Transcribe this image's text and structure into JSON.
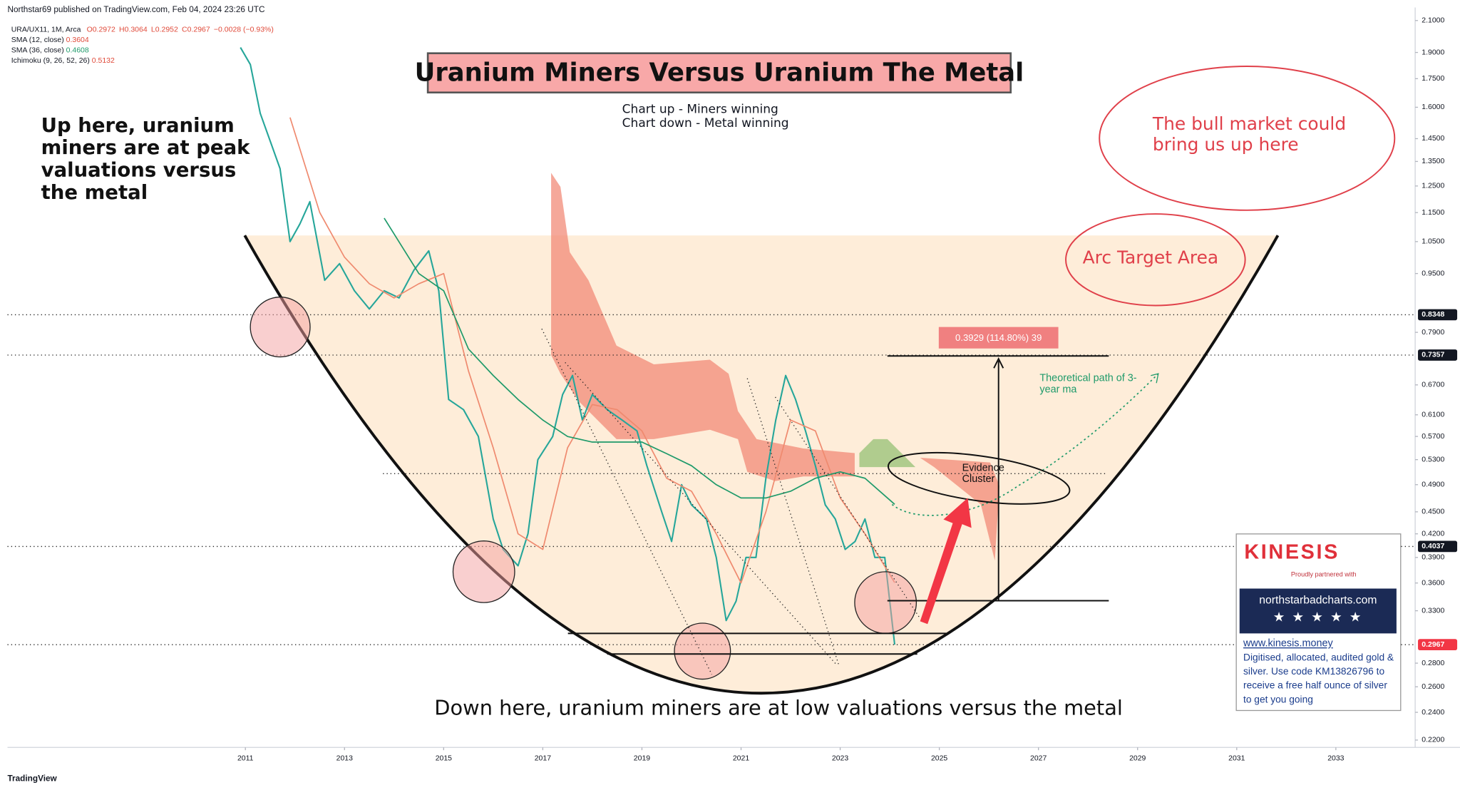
{
  "header": "Northstar69 published on TradingView.com, Feb 04, 2024 23:26 UTC",
  "footer": "TradingView",
  "chart_data": {
    "type": "line",
    "title": "Uranium Miners Versus Uranium The Metal",
    "subtitle": [
      "Chart up - Miners winning",
      "Chart down - Metal winning"
    ],
    "quote": [
      "O0.2972",
      "H0.3064",
      "L0.2952",
      "C0.2967",
      "−0.0028 (−0.93%)"
    ],
    "series": [
      {
        "name": "URA/UX11, 1M, Arca",
        "color": "#26a69a",
        "x": [
          2010.9,
          2011.1,
          2011.3,
          2011.5,
          2011.7,
          2011.9,
          2012.1,
          2012.3,
          2012.6,
          2012.9,
          2013.2,
          2013.5,
          2013.8,
          2014.1,
          2014.4,
          2014.7,
          2014.9,
          2015.1,
          2015.4,
          2015.7,
          2016.0,
          2016.2,
          2016.5,
          2016.7,
          2016.9,
          2017.2,
          2017.4,
          2017.6,
          2017.8,
          2018.0,
          2018.3,
          2018.6,
          2018.9,
          2019.1,
          2019.4,
          2019.6,
          2019.8,
          2020.0,
          2020.3,
          2020.5,
          2020.7,
          2020.9,
          2021.1,
          2021.3,
          2021.5,
          2021.7,
          2021.9,
          2022.1,
          2022.3,
          2022.5,
          2022.7,
          2022.9,
          2023.1,
          2023.3,
          2023.5,
          2023.7,
          2023.9,
          2024.0,
          2024.1
        ],
        "values": [
          1.93,
          1.83,
          1.57,
          1.44,
          1.32,
          1.05,
          1.11,
          1.19,
          0.93,
          0.98,
          0.9,
          0.85,
          0.9,
          0.88,
          0.96,
          1.02,
          0.9,
          0.64,
          0.62,
          0.57,
          0.44,
          0.4,
          0.38,
          0.42,
          0.53,
          0.57,
          0.65,
          0.69,
          0.6,
          0.65,
          0.62,
          0.6,
          0.58,
          0.52,
          0.45,
          0.41,
          0.49,
          0.46,
          0.44,
          0.39,
          0.32,
          0.34,
          0.39,
          0.39,
          0.5,
          0.6,
          0.69,
          0.64,
          0.58,
          0.52,
          0.46,
          0.44,
          0.4,
          0.41,
          0.44,
          0.39,
          0.39,
          0.34,
          0.2967
        ]
      },
      {
        "name": "SMA (12, close)",
        "color": "#ef8a6f",
        "x": [
          2011.9,
          2012.5,
          2013,
          2013.5,
          2014,
          2014.5,
          2015,
          2015.5,
          2016,
          2016.5,
          2017,
          2017.5,
          2018,
          2018.5,
          2019,
          2019.5,
          2020,
          2020.5,
          2021,
          2021.5,
          2022,
          2022.5,
          2023,
          2023.5,
          2024.1
        ],
        "values": [
          1.55,
          1.15,
          1.0,
          0.92,
          0.88,
          0.92,
          0.95,
          0.7,
          0.55,
          0.42,
          0.4,
          0.55,
          0.63,
          0.62,
          0.58,
          0.5,
          0.48,
          0.42,
          0.36,
          0.45,
          0.6,
          0.58,
          0.47,
          0.42,
          0.3604
        ]
      },
      {
        "name": "SMA (36, close)",
        "color": "#1e9a6a",
        "x": [
          2013.8,
          2014.5,
          2015,
          2015.5,
          2016,
          2016.5,
          2017,
          2017.5,
          2018,
          2019,
          2019.5,
          2020,
          2020.5,
          2021,
          2021.5,
          2022,
          2022.5,
          2023,
          2023.5,
          2024.1
        ],
        "values": [
          1.13,
          0.95,
          0.9,
          0.75,
          0.69,
          0.64,
          0.6,
          0.57,
          0.56,
          0.56,
          0.54,
          0.52,
          0.49,
          0.47,
          0.47,
          0.48,
          0.5,
          0.51,
          0.5,
          0.4608
        ]
      }
    ],
    "ichimoku": {
      "name": "Ichimoku (9, 26, 52, 26)",
      "value": 0.5132
    },
    "log_scale": true,
    "xlim": [
      2006.2,
      2034.6
    ],
    "xticks": [
      2011,
      2013,
      2015,
      2017,
      2019,
      2021,
      2023,
      2025,
      2027,
      2029,
      2031,
      2033
    ],
    "ylim": [
      0.215,
      2.175
    ],
    "yticks": [
      {
        "value": 2.1,
        "label": "2.1000"
      },
      {
        "value": 1.9,
        "label": "1.9000"
      },
      {
        "value": 1.75,
        "label": "1.7500"
      },
      {
        "value": 1.6,
        "label": "1.6000"
      },
      {
        "value": 1.45,
        "label": "1.4500"
      },
      {
        "value": 1.35,
        "label": "1.3500"
      },
      {
        "value": 1.25,
        "label": "1.2500"
      },
      {
        "value": 1.15,
        "label": "1.1500"
      },
      {
        "value": 1.05,
        "label": "1.0500"
      },
      {
        "value": 0.95,
        "label": "0.9500"
      },
      {
        "value": 0.79,
        "label": "0.7900"
      },
      {
        "value": 0.67,
        "label": "0.6700"
      },
      {
        "value": 0.61,
        "label": "0.6100"
      },
      {
        "value": 0.57,
        "label": "0.5700"
      },
      {
        "value": 0.53,
        "label": "0.5300"
      },
      {
        "value": 0.49,
        "label": "0.4900"
      },
      {
        "value": 0.45,
        "label": "0.4500"
      },
      {
        "value": 0.42,
        "label": "0.4200"
      },
      {
        "value": 0.39,
        "label": "0.3900"
      },
      {
        "value": 0.36,
        "label": "0.3600"
      },
      {
        "value": 0.33,
        "label": "0.3300"
      },
      {
        "value": 0.28,
        "label": "0.2800"
      },
      {
        "value": 0.26,
        "label": "0.2600"
      },
      {
        "value": 0.24,
        "label": "0.2400"
      },
      {
        "value": 0.22,
        "label": "0.2200"
      }
    ],
    "levels": [
      {
        "value": 0.8348,
        "color": "#131722"
      },
      {
        "value": 0.7357,
        "color": "#131722"
      },
      {
        "value": 0.4037,
        "color": "#131722"
      },
      {
        "value": 0.2967,
        "color": "#f23645"
      }
    ],
    "annotations": {
      "peak": "Up here, uranium miners are at peak valuations versus the metal",
      "low": "Down here, uranium miners are at low valuations versus the metal",
      "bull": "The bull market could bring us up here",
      "arc": "Arc Target Area",
      "measure": "0.3929 (114.80%) 39",
      "path": "Theoretical path of 3-year ma",
      "cluster": "Evidence Cluster"
    }
  },
  "ad": {
    "brand": "KINESIS",
    "tagline": "Proudly partnered with",
    "site": "northstarbadcharts.com",
    "stars": "★ ★ ★ ★ ★",
    "url": "www.kinesis.money",
    "text": "Digitised, allocated, audited gold & silver. Use code KM13826796 to receive a free half ounce of silver to get you going"
  }
}
